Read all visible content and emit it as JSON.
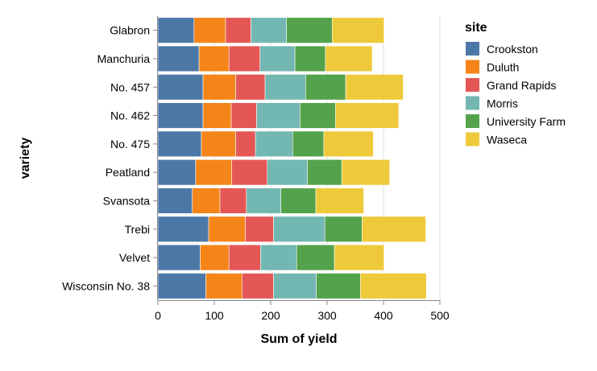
{
  "chart_data": {
    "type": "bar",
    "orientation": "horizontal",
    "stacked": true,
    "xlabel": "Sum of yield",
    "ylabel": "variety",
    "xlim": [
      0,
      500
    ],
    "x_ticks": [
      0,
      100,
      200,
      300,
      400,
      500
    ],
    "grid": true,
    "legend_title": "site",
    "legend_position": "right",
    "categories": [
      "Glabron",
      "Manchuria",
      "No. 457",
      "No. 462",
      "No. 475",
      "Peatland",
      "Svansota",
      "Trebi",
      "Velvet",
      "Wisconsin No. 38"
    ],
    "series": [
      {
        "name": "Crookston",
        "color": "#4c78a8",
        "values": [
          64,
          73,
          80,
          80,
          77,
          67,
          61,
          90,
          75,
          85
        ]
      },
      {
        "name": "Duluth",
        "color": "#f58518",
        "values": [
          56,
          53,
          58,
          50,
          61,
          64,
          49,
          65,
          51,
          64
        ]
      },
      {
        "name": "Grand Rapids",
        "color": "#e45756",
        "values": [
          45,
          55,
          52,
          45,
          35,
          63,
          47,
          50,
          56,
          56
        ]
      },
      {
        "name": "Morris",
        "color": "#72b7b2",
        "values": [
          63,
          62,
          72,
          77,
          66,
          71,
          61,
          91,
          64,
          76
        ]
      },
      {
        "name": "University Farm",
        "color": "#54a24b",
        "values": [
          81,
          54,
          71,
          63,
          55,
          61,
          62,
          66,
          67,
          78
        ]
      },
      {
        "name": "Waseca",
        "color": "#eeca3b",
        "values": [
          92,
          83,
          102,
          112,
          88,
          85,
          85,
          113,
          88,
          117
        ]
      }
    ]
  }
}
